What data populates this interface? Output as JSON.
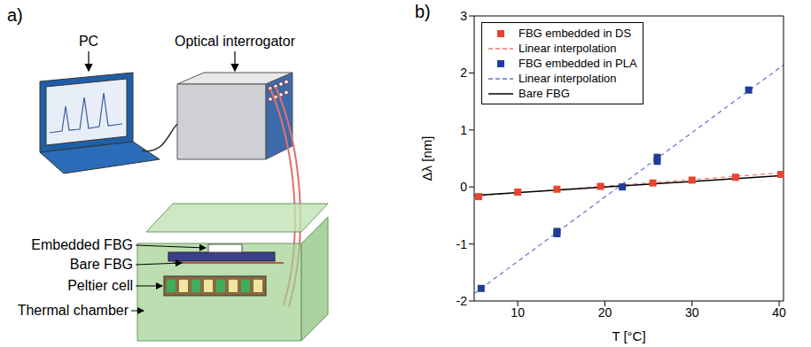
{
  "diagram": {
    "letter": "a)",
    "labels": {
      "pc": "PC",
      "interrogator": "Optical interrogator",
      "embedded": "Embedded FBG",
      "bare": "Bare FBG",
      "peltier": "Peltier cell",
      "chamber": "Thermal chamber"
    }
  },
  "chart_data": {
    "letter": "b)",
    "type": "scatter",
    "x_label": "T [°C]",
    "y_label": "Δλ [nm]",
    "xlim": [
      5,
      40.5
    ],
    "xticks": [
      10,
      20,
      30,
      40
    ],
    "ylim": [
      -2,
      3
    ],
    "yticks": [
      -2,
      -1,
      0,
      1,
      2,
      3
    ],
    "legend": "upper left",
    "series": [
      {
        "name": "FBG embedded in DS",
        "type": "scatter",
        "marker": "square",
        "color": "#e8432f",
        "x": [
          5.5,
          10,
          14.5,
          19.5,
          25.5,
          30,
          35,
          40.2
        ],
        "values": [
          -0.17,
          -0.09,
          -0.04,
          0.01,
          0.07,
          0.12,
          0.17,
          0.22
        ]
      },
      {
        "name": "Linear interpolation",
        "type": "line",
        "line_style": "dashed",
        "color": "#f0756a",
        "x": [
          5,
          40.5
        ],
        "values": [
          -0.16,
          0.25
        ]
      },
      {
        "name": "FBG embedded in PLA",
        "type": "scatter",
        "marker": "square",
        "color": "#1f3c99",
        "x": [
          5.8,
          14.5,
          14.5,
          22,
          26,
          26,
          36.5
        ],
        "values": [
          -1.78,
          -0.82,
          -0.78,
          0.0,
          0.45,
          0.52,
          1.7
        ]
      },
      {
        "name": "Linear interpolation",
        "type": "line",
        "line_style": "dashed",
        "color": "#6272c4",
        "x": [
          5,
          40.5
        ],
        "values": [
          -1.87,
          2.14
        ]
      },
      {
        "name": "Bare FBG",
        "type": "line",
        "line_style": "solid",
        "color": "#000000",
        "x": [
          5,
          40.5
        ],
        "values": [
          -0.15,
          0.2
        ]
      }
    ]
  }
}
